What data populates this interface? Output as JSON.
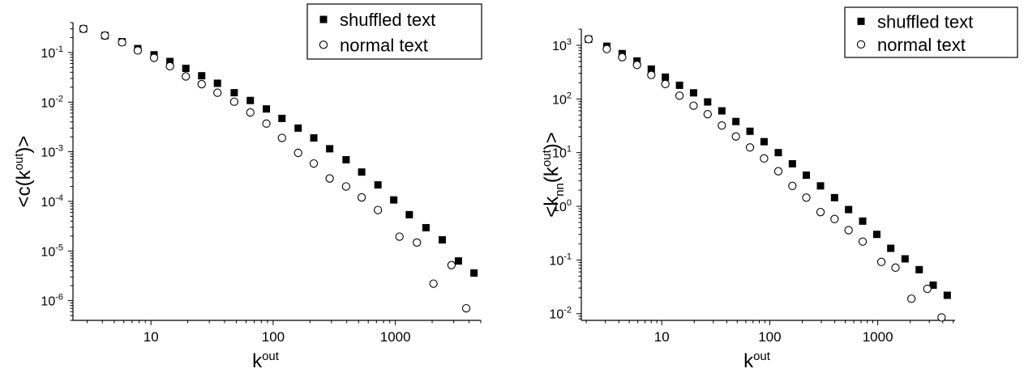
{
  "chart_data": [
    {
      "type": "scatter",
      "title": "",
      "xlabel": "k",
      "xlabel_sup": "out",
      "ylabel_parts": [
        "<c(k",
        "out",
        ")>"
      ],
      "xscale": "log",
      "yscale": "log",
      "xlim": [
        2.3,
        5000
      ],
      "ylim": [
        4e-07,
        0.4
      ],
      "xticks": [
        10,
        100,
        1000
      ],
      "xtick_labels": [
        "10",
        "100",
        "1000"
      ],
      "yticks": [
        1e-06,
        1e-05,
        0.0001,
        0.001,
        0.01,
        0.1
      ],
      "ytick_labels": [
        [
          "10",
          "-6"
        ],
        [
          "10",
          "-5"
        ],
        [
          "10",
          "-4"
        ],
        [
          "10",
          "-3"
        ],
        [
          "10",
          "-2"
        ],
        [
          "10",
          "-1"
        ]
      ],
      "grid": false,
      "legend_position": "top-right",
      "series": [
        {
          "name": "shuffled text",
          "marker": "filled-square",
          "color": "#000000",
          "x": [
            2.8,
            4.2,
            5.8,
            7.8,
            10.6,
            14.3,
            19.3,
            26,
            35,
            48,
            65,
            88,
            118,
            160,
            215,
            290,
            395,
            530,
            720,
            970,
            1300,
            1780,
            2420,
            3280,
            4400
          ],
          "y": [
            0.3,
            0.22,
            0.165,
            0.12,
            0.09,
            0.066,
            0.048,
            0.034,
            0.024,
            0.0155,
            0.0108,
            0.0073,
            0.0047,
            0.003,
            0.0019,
            0.00115,
            0.00069,
            0.00039,
            0.000215,
            0.000107,
            5.4e-05,
            2.95e-05,
            1.68e-05,
            6.3e-06,
            3.6e-06
          ]
        },
        {
          "name": "normal text",
          "marker": "open-circle",
          "color": "#000000",
          "x": [
            2.8,
            4.2,
            5.8,
            7.8,
            10.6,
            14.3,
            19.3,
            26,
            35,
            48,
            65,
            88,
            118,
            160,
            215,
            290,
            395,
            530,
            720,
            1080,
            1500,
            2050,
            2880,
            3800
          ],
          "y": [
            0.3,
            0.22,
            0.16,
            0.11,
            0.078,
            0.053,
            0.033,
            0.023,
            0.0155,
            0.0102,
            0.0062,
            0.0037,
            0.0019,
            0.00095,
            0.00058,
            0.00029,
            0.0002,
            0.00012,
            6.7e-05,
            1.95e-05,
            1.48e-05,
            2.2e-06,
            5.2e-06,
            7e-07
          ]
        }
      ]
    },
    {
      "type": "scatter",
      "title": "",
      "xlabel": "k",
      "xlabel_sup": "out",
      "ylabel_parts": [
        "<k",
        "nn",
        "(k",
        "out",
        ")>"
      ],
      "xscale": "log",
      "yscale": "log",
      "xlim": [
        1.8,
        5200
      ],
      "ylim": [
        0.0075,
        2000
      ],
      "xticks": [
        10,
        100,
        1000
      ],
      "xtick_labels": [
        "10",
        "100",
        "1000"
      ],
      "yticks": [
        0.01,
        0.1,
        1,
        10,
        100,
        1000
      ],
      "ytick_labels": [
        [
          "10",
          "-2"
        ],
        [
          "10",
          "-1"
        ],
        [
          "10",
          "0"
        ],
        [
          "10",
          "1"
        ],
        [
          "10",
          "2"
        ],
        [
          "10",
          "3"
        ]
      ],
      "grid": false,
      "legend_position": "top-right",
      "series": [
        {
          "name": "shuffled text",
          "marker": "filled-square",
          "color": "#000000",
          "x": [
            2.1,
            3.1,
            4.3,
            5.9,
            8,
            10.8,
            14.6,
            19.7,
            26.6,
            36,
            48.6,
            65.6,
            88.6,
            120,
            162,
            218,
            295,
            398,
            537,
            725,
            980,
            1320,
            1790,
            2420,
            3260,
            4400
          ],
          "y": [
            1300,
            960,
            700,
            510,
            360,
            255,
            180,
            130,
            88,
            60,
            38,
            25,
            16,
            10,
            6.2,
            3.8,
            2.4,
            1.45,
            0.87,
            0.53,
            0.3,
            0.165,
            0.105,
            0.066,
            0.034,
            0.022
          ]
        },
        {
          "name": "normal text",
          "marker": "open-circle",
          "color": "#000000",
          "x": [
            2.1,
            3.1,
            4.3,
            5.9,
            8,
            10.8,
            14.6,
            19.7,
            26.6,
            36,
            48.6,
            65.6,
            88.6,
            120,
            162,
            218,
            295,
            398,
            537,
            725,
            1080,
            1460,
            2050,
            2880,
            3900
          ],
          "y": [
            1300,
            850,
            600,
            430,
            280,
            190,
            115,
            75,
            52,
            32,
            20,
            12.5,
            7.8,
            4.5,
            2.4,
            1.45,
            0.78,
            0.58,
            0.36,
            0.22,
            0.092,
            0.072,
            0.019,
            0.029,
            0.0085
          ]
        }
      ]
    }
  ]
}
